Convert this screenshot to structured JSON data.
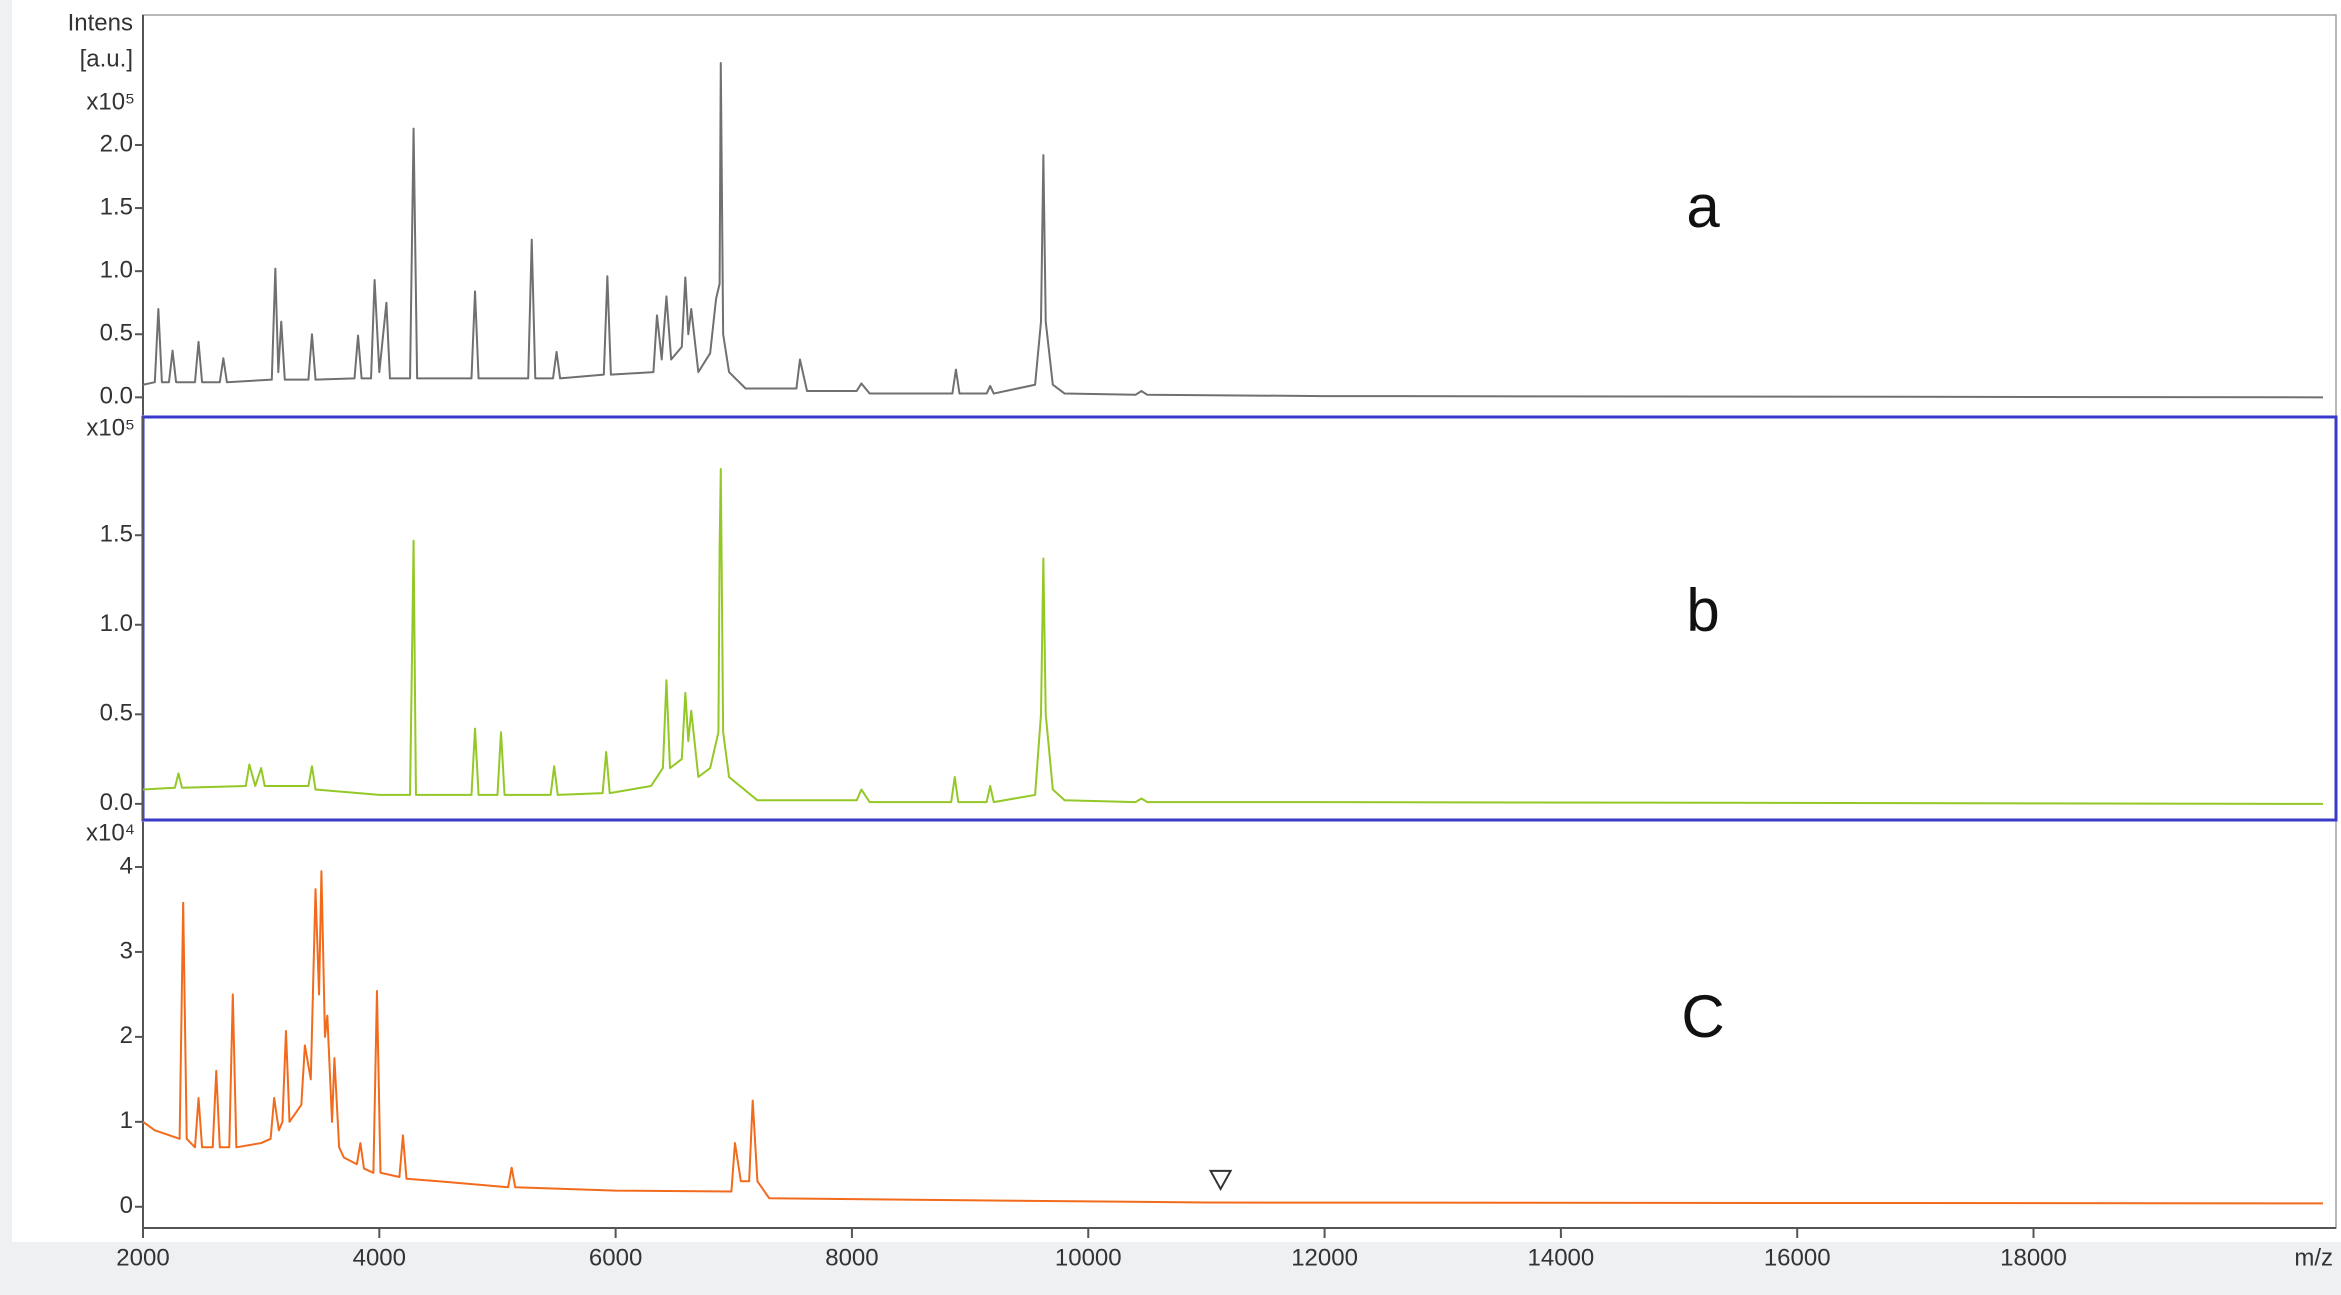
{
  "chart_data": [
    {
      "type": "line",
      "ylabel": [
        "Intens",
        "[a.u.]"
      ],
      "y_multiplier": "x10⁵",
      "label": "a",
      "xlim": [
        2000,
        20450
      ],
      "ylim": [
        -0.14,
        3.03
      ],
      "yticks": [
        {
          "value": 0,
          "label": "0.0"
        },
        0.5,
        {
          "value": 1,
          "label": "1.0"
        },
        1.5,
        {
          "value": 2,
          "label": "2.0"
        }
      ],
      "x": [
        2000,
        2100,
        2130,
        2160,
        2220,
        2250,
        2280,
        2440,
        2470,
        2500,
        2650,
        2680,
        2710,
        3090,
        3120,
        3145,
        3170,
        3200,
        3400,
        3430,
        3460,
        3790,
        3820,
        3850,
        3930,
        3960,
        4000,
        4060,
        4090,
        4260,
        4290,
        4320,
        4780,
        4810,
        4840,
        5260,
        5290,
        5320,
        5470,
        5500,
        5530,
        5900,
        5930,
        5960,
        6320,
        6350,
        6390,
        6430,
        6470,
        6560,
        6590,
        6615,
        6640,
        6700,
        6800,
        6850,
        6880,
        6890,
        6910,
        6960,
        7100,
        7530,
        7560,
        7620,
        8040,
        8080,
        8150,
        8850,
        8880,
        8910,
        9140,
        9170,
        9200,
        9550,
        9600,
        9620,
        9640,
        9700,
        9800,
        10400,
        10450,
        10500,
        12000,
        20450
      ],
      "series": [
        {
          "color": "#707070",
          "values": [
            0.1,
            0.12,
            0.7,
            0.12,
            0.12,
            0.37,
            0.12,
            0.12,
            0.44,
            0.12,
            0.12,
            0.31,
            0.12,
            0.14,
            1.02,
            0.2,
            0.6,
            0.14,
            0.14,
            0.5,
            0.14,
            0.15,
            0.49,
            0.15,
            0.15,
            0.93,
            0.2,
            0.75,
            0.15,
            0.15,
            2.13,
            0.15,
            0.15,
            0.84,
            0.15,
            0.15,
            1.25,
            0.15,
            0.15,
            0.36,
            0.15,
            0.18,
            0.96,
            0.18,
            0.2,
            0.65,
            0.3,
            0.8,
            0.3,
            0.4,
            0.95,
            0.5,
            0.7,
            0.2,
            0.35,
            0.78,
            0.9,
            2.65,
            0.5,
            0.2,
            0.07,
            0.07,
            0.3,
            0.05,
            0.05,
            0.11,
            0.03,
            0.03,
            0.22,
            0.03,
            0.03,
            0.09,
            0.03,
            0.1,
            0.6,
            1.92,
            0.6,
            0.1,
            0.03,
            0.02,
            0.05,
            0.02,
            0.01,
            0
          ]
        }
      ]
    },
    {
      "type": "line",
      "y_multiplier": "x10⁵",
      "label": "b",
      "frame_color": "#3a3ac8",
      "xlim": [
        2000,
        20450
      ],
      "ylim": [
        -0.09,
        2.16
      ],
      "yticks": [
        {
          "value": 0,
          "label": "0.0"
        },
        0.5,
        {
          "value": 1,
          "label": "1.0"
        },
        1.5
      ],
      "x": [
        2000,
        2270,
        2300,
        2330,
        2870,
        2900,
        2950,
        3000,
        3030,
        3400,
        3430,
        3460,
        4000,
        4260,
        4280,
        4290,
        4310,
        4780,
        4810,
        4840,
        5000,
        5030,
        5060,
        5450,
        5480,
        5510,
        5890,
        5920,
        5950,
        6300,
        6400,
        6430,
        6460,
        6560,
        6590,
        6615,
        6640,
        6700,
        6800,
        6870,
        6880,
        6890,
        6910,
        6960,
        7200,
        8040,
        8080,
        8150,
        8840,
        8870,
        8900,
        9140,
        9170,
        9200,
        9550,
        9600,
        9620,
        9640,
        9700,
        9800,
        10400,
        10450,
        10500,
        12000,
        20450
      ],
      "series": [
        {
          "color": "#94c826",
          "values": [
            0.08,
            0.09,
            0.17,
            0.09,
            0.1,
            0.22,
            0.1,
            0.2,
            0.1,
            0.1,
            0.21,
            0.08,
            0.05,
            0.05,
            0.98,
            1.47,
            0.05,
            0.05,
            0.42,
            0.05,
            0.05,
            0.4,
            0.05,
            0.05,
            0.21,
            0.05,
            0.06,
            0.29,
            0.06,
            0.1,
            0.2,
            0.69,
            0.2,
            0.25,
            0.62,
            0.35,
            0.52,
            0.15,
            0.2,
            0.4,
            1.42,
            1.87,
            0.4,
            0.15,
            0.02,
            0.02,
            0.08,
            0.01,
            0.01,
            0.15,
            0.01,
            0.01,
            0.1,
            0.01,
            0.05,
            0.5,
            1.37,
            0.5,
            0.08,
            0.02,
            0.01,
            0.03,
            0.01,
            0.01,
            0
          ]
        }
      ]
    },
    {
      "type": "line",
      "y_multiplier": "x10⁴",
      "label": "C",
      "xlabel": "m/z",
      "xlim": [
        2000,
        20450
      ],
      "ylim": [
        -0.25,
        4.53
      ],
      "yticks": [
        0,
        1,
        2,
        3,
        4
      ],
      "xticks": [
        2000,
        4000,
        6000,
        8000,
        10000,
        12000,
        14000,
        16000,
        18000
      ],
      "marker_x": 11120,
      "marker_y": 0.21,
      "x": [
        2000,
        2100,
        2310,
        2340,
        2370,
        2440,
        2470,
        2500,
        2590,
        2620,
        2650,
        2730,
        2760,
        2790,
        3000,
        3080,
        3110,
        3150,
        3180,
        3210,
        3240,
        3340,
        3370,
        3420,
        3460,
        3490,
        3510,
        3540,
        3560,
        3600,
        3620,
        3660,
        3700,
        3810,
        3840,
        3870,
        3950,
        3980,
        4010,
        4170,
        4200,
        4230,
        4500,
        5090,
        5120,
        5150,
        6000,
        6980,
        7010,
        7060,
        7130,
        7160,
        7200,
        7300,
        8000,
        11000,
        20450
      ],
      "series": [
        {
          "color": "#f26b1d",
          "values": [
            1.0,
            0.9,
            0.8,
            3.58,
            0.8,
            0.7,
            1.28,
            0.7,
            0.7,
            1.6,
            0.7,
            0.7,
            2.5,
            0.7,
            0.75,
            0.8,
            1.28,
            0.9,
            1.0,
            2.07,
            1.0,
            1.2,
            1.9,
            1.5,
            3.74,
            2.5,
            3.95,
            2.0,
            2.25,
            1.0,
            1.75,
            0.7,
            0.58,
            0.5,
            0.75,
            0.45,
            0.4,
            2.54,
            0.4,
            0.35,
            0.84,
            0.33,
            0.3,
            0.23,
            0.46,
            0.23,
            0.19,
            0.18,
            0.75,
            0.3,
            0.3,
            1.25,
            0.3,
            0.1,
            0.09,
            0.05,
            0.04
          ]
        }
      ]
    }
  ]
}
